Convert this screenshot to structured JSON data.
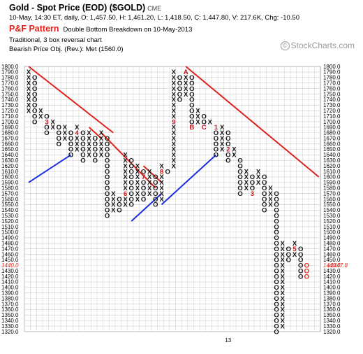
{
  "header": {
    "title": "Gold - Spot Price (EOD) ($GOLD)",
    "exchange": "CME",
    "quote_line": "10-May, 14:30 ET, daily, O: 1,457.50, H: 1,461.20, L: 1,418.50, C: 1,447.80, V: 217.6K, Chg: -10.50",
    "pattern_label": "P&F Pattern",
    "pattern_text": "Double Bottom Breakdown on 10-May-2013",
    "method": "Traditional, 3 box reversal chart",
    "objective": "Bearish Price Obj. (Rev.): Met (1560.0)"
  },
  "watermark": "StockCharts.com",
  "colors": {
    "trend_red": "#e0221a",
    "trend_blue": "#1a2ee0",
    "month_marker": "#c4161c",
    "last_price": "#e0221a"
  },
  "chart_data": {
    "type": "point-and-figure",
    "box_size": 10,
    "reversal": 3,
    "y_min": 1320,
    "y_max": 1800,
    "y_ticks": [
      "1800.0",
      "1790.0",
      "1780.0",
      "1770.0",
      "1760.0",
      "1750.0",
      "1740.0",
      "1730.0",
      "1720.0",
      "1710.0",
      "1700.0",
      "1690.0",
      "1680.0",
      "1670.0",
      "1660.0",
      "1650.0",
      "1640.0",
      "1630.0",
      "1620.0",
      "1610.0",
      "1600.0",
      "1590.0",
      "1580.0",
      "1570.0",
      "1560.0",
      "1550.0",
      "1540.0",
      "1530.0",
      "1520.0",
      "1510.0",
      "1500.0",
      "1490.0",
      "1480.0",
      "1470.0",
      "1460.0",
      "1450.0",
      "1440.0",
      "1430.0",
      "1420.0",
      "1410.0",
      "1400.0",
      "1390.0",
      "1380.0",
      "1370.0",
      "1360.0",
      "1350.0",
      "1340.0",
      "1330.0",
      "1320.0"
    ],
    "x_labels": [
      {
        "col": 33,
        "text": "13"
      }
    ],
    "last_price": 1447.8,
    "last_price_label": "1447.8",
    "last_price_tick": "1440.0",
    "columns": [
      {
        "t": "X",
        "lo": 1720,
        "hi": 1790
      },
      {
        "t": "O",
        "lo": 1700,
        "hi": 1780
      },
      {
        "t": "X",
        "lo": 1710,
        "hi": 1720
      },
      {
        "t": "O",
        "lo": 1680,
        "hi": 1710,
        "m": [
          {
            "v": 1700,
            "c": "3"
          }
        ]
      },
      {
        "t": "X",
        "lo": 1690,
        "hi": 1700
      },
      {
        "t": "O",
        "lo": 1660,
        "hi": 1690
      },
      {
        "t": "X",
        "lo": 1670,
        "hi": 1690
      },
      {
        "t": "O",
        "lo": 1640,
        "hi": 1680
      },
      {
        "t": "X",
        "lo": 1650,
        "hi": 1690,
        "m": [
          {
            "v": 1680,
            "c": "4"
          }
        ]
      },
      {
        "t": "O",
        "lo": 1630,
        "hi": 1680
      },
      {
        "t": "X",
        "lo": 1640,
        "hi": 1680
      },
      {
        "t": "O",
        "lo": 1630,
        "hi": 1670
      },
      {
        "t": "X",
        "lo": 1640,
        "hi": 1680
      },
      {
        "t": "O",
        "lo": 1530,
        "hi": 1670
      },
      {
        "t": "X",
        "lo": 1540,
        "hi": 1570
      },
      {
        "t": "O",
        "lo": 1540,
        "hi": 1560
      },
      {
        "t": "X",
        "lo": 1550,
        "hi": 1640,
        "m": [
          {
            "v": 1570,
            "c": "6"
          }
        ]
      },
      {
        "t": "O",
        "lo": 1550,
        "hi": 1630
      },
      {
        "t": "X",
        "lo": 1560,
        "hi": 1620
      },
      {
        "t": "O",
        "lo": 1560,
        "hi": 1610,
        "m": [
          {
            "v": 1600,
            "c": "7"
          }
        ]
      },
      {
        "t": "X",
        "lo": 1570,
        "hi": 1610
      },
      {
        "t": "O",
        "lo": 1550,
        "hi": 1600
      },
      {
        "t": "X",
        "lo": 1560,
        "hi": 1620,
        "m": [
          {
            "v": 1610,
            "c": "8"
          }
        ]
      },
      {
        "t": "O",
        "lo": 1610,
        "hi": 1610
      },
      {
        "t": "X",
        "lo": 1620,
        "hi": 1790,
        "m": [
          {
            "v": 1700,
            "c": "9"
          }
        ]
      },
      {
        "t": "O",
        "lo": 1740,
        "hi": 1780
      },
      {
        "t": "X",
        "lo": 1750,
        "hi": 1790,
        "m": [
          {
            "v": 1790,
            "c": "A"
          }
        ]
      },
      {
        "t": "O",
        "lo": 1690,
        "hi": 1780,
        "m": [
          {
            "v": 1690,
            "c": "B"
          }
        ]
      },
      {
        "t": "X",
        "lo": 1700,
        "hi": 1720
      },
      {
        "t": "O",
        "lo": 1690,
        "hi": 1710,
        "m": [
          {
            "v": 1690,
            "c": "C"
          }
        ]
      },
      {
        "t": "X",
        "lo": 1700,
        "hi": 1700
      },
      {
        "t": "O",
        "lo": 1640,
        "hi": 1690,
        "m": [
          {
            "v": 1690,
            "c": "1"
          }
        ]
      },
      {
        "t": "X",
        "lo": 1650,
        "hi": 1690
      },
      {
        "t": "O",
        "lo": 1630,
        "hi": 1680,
        "m": [
          {
            "v": 1650,
            "c": "2"
          }
        ]
      },
      {
        "t": "X",
        "lo": 1640,
        "hi": 1650
      },
      {
        "t": "O",
        "lo": 1570,
        "hi": 1630
      },
      {
        "t": "X",
        "lo": 1580,
        "hi": 1610
      },
      {
        "t": "O",
        "lo": 1570,
        "hi": 1600,
        "m": [
          {
            "v": 1570,
            "c": "3"
          },
          {
            "v": 1610,
            "c": "4"
          }
        ]
      },
      {
        "t": "X",
        "lo": 1590,
        "hi": 1610
      },
      {
        "t": "O",
        "lo": 1540,
        "hi": 1600
      },
      {
        "t": "X",
        "lo": 1550,
        "hi": 1580
      },
      {
        "t": "O",
        "lo": 1320,
        "hi": 1570
      },
      {
        "t": "X",
        "lo": 1330,
        "hi": 1480
      },
      {
        "t": "O",
        "lo": 1450,
        "hi": 1470
      },
      {
        "t": "X",
        "lo": 1460,
        "hi": 1480,
        "m": [
          {
            "v": 1470,
            "c": "5"
          }
        ]
      },
      {
        "t": "O",
        "lo": 1420,
        "hi": 1470
      }
    ],
    "trendlines": [
      {
        "color": "red",
        "from": [
          0,
          1800
        ],
        "to": [
          14,
          1680
        ]
      },
      {
        "color": "red",
        "from": [
          10,
          1690
        ],
        "to": [
          12,
          1670
        ]
      },
      {
        "color": "red",
        "from": [
          12,
          1680
        ],
        "to": [
          21,
          1580
        ]
      },
      {
        "color": "red",
        "from": [
          19,
          1620
        ],
        "to": [
          22,
          1590
        ]
      },
      {
        "color": "red",
        "from": [
          26,
          1800
        ],
        "to": [
          48,
          1600
        ]
      },
      {
        "color": "blue",
        "from": [
          0,
          1590
        ],
        "to": [
          7,
          1640
        ]
      },
      {
        "color": "blue",
        "from": [
          17,
          1520
        ],
        "to": [
          22,
          1570
        ]
      },
      {
        "color": "blue",
        "from": [
          22,
          1550
        ],
        "to": [
          31,
          1640
        ]
      }
    ]
  }
}
